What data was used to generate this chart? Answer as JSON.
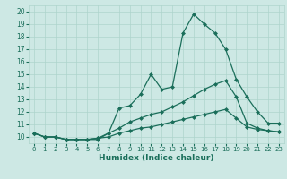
{
  "title": "",
  "xlabel": "Humidex (Indice chaleur)",
  "bg_color": "#cde8e4",
  "grid_color": "#aed4cc",
  "line_color": "#1a6e5a",
  "marker": "D",
  "markersize": 2.0,
  "linewidth": 0.9,
  "xlim": [
    -0.5,
    23.5
  ],
  "ylim": [
    9.5,
    20.5
  ],
  "yticks": [
    10,
    11,
    12,
    13,
    14,
    15,
    16,
    17,
    18,
    19,
    20
  ],
  "xticks": [
    0,
    1,
    2,
    3,
    4,
    5,
    6,
    7,
    8,
    9,
    10,
    11,
    12,
    13,
    14,
    15,
    16,
    17,
    18,
    19,
    20,
    21,
    22,
    23
  ],
  "line1_x": [
    0,
    1,
    2,
    3,
    4,
    5,
    6,
    7,
    8,
    9,
    10,
    11,
    12,
    13,
    14,
    15,
    16,
    17,
    18,
    19,
    20,
    21,
    22,
    23
  ],
  "line1_y": [
    10.3,
    10.0,
    10.0,
    9.8,
    9.8,
    9.8,
    9.8,
    10.3,
    12.3,
    12.5,
    13.4,
    15.0,
    13.8,
    14.0,
    18.3,
    19.8,
    19.0,
    18.3,
    17.0,
    14.6,
    13.2,
    12.0,
    11.1,
    11.1
  ],
  "line2_x": [
    0,
    1,
    2,
    3,
    4,
    5,
    6,
    7,
    8,
    9,
    10,
    11,
    12,
    13,
    14,
    15,
    16,
    17,
    18,
    19,
    20,
    21,
    22,
    23
  ],
  "line2_y": [
    10.3,
    10.0,
    10.0,
    9.8,
    9.8,
    9.8,
    9.9,
    10.3,
    10.7,
    11.2,
    11.5,
    11.8,
    12.0,
    12.4,
    12.8,
    13.3,
    13.8,
    14.2,
    14.5,
    13.2,
    11.1,
    10.7,
    10.5,
    10.4
  ],
  "line3_x": [
    0,
    1,
    2,
    3,
    4,
    5,
    6,
    7,
    8,
    9,
    10,
    11,
    12,
    13,
    14,
    15,
    16,
    17,
    18,
    19,
    20,
    21,
    22,
    23
  ],
  "line3_y": [
    10.3,
    10.0,
    10.0,
    9.8,
    9.8,
    9.8,
    9.9,
    10.0,
    10.3,
    10.5,
    10.7,
    10.8,
    11.0,
    11.2,
    11.4,
    11.6,
    11.8,
    12.0,
    12.2,
    11.5,
    10.8,
    10.6,
    10.5,
    10.4
  ]
}
